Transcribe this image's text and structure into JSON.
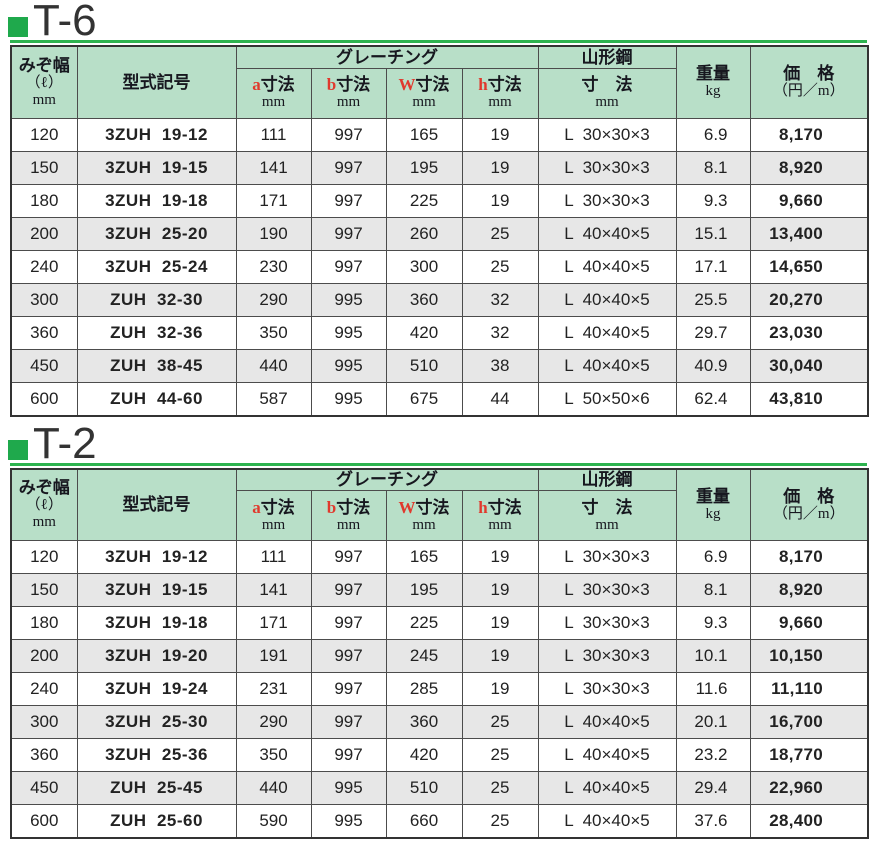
{
  "colors": {
    "accent_green": "#1fa94c",
    "bar_green": "#2db34f",
    "header_bg": "#b8dfc8",
    "alt_row_bg": "#e7e7e7",
    "dim_letter_red": "#e0392d"
  },
  "header": {
    "groove": {
      "line1": "みぞ幅",
      "line2": "（ℓ）",
      "line3": "mm"
    },
    "model": "型式記号",
    "grating": "グレーチング",
    "dims": [
      {
        "letter": "a",
        "label": "寸法",
        "unit": "mm"
      },
      {
        "letter": "b",
        "label": "寸法",
        "unit": "mm"
      },
      {
        "letter": "W",
        "label": "寸法",
        "unit": "mm"
      },
      {
        "letter": "h",
        "label": "寸法",
        "unit": "mm"
      }
    ],
    "angle": {
      "title": "山形鋼",
      "sub": "寸　法",
      "unit": "mm"
    },
    "weight": {
      "line1": "重量",
      "line2": "kg"
    },
    "price": {
      "line1": "価　格",
      "line2": "（円／m）"
    }
  },
  "sections": [
    {
      "id": "t6",
      "title": "T-6",
      "rows": [
        [
          "120",
          "3ZUH  19-12",
          "111",
          "997",
          "165",
          "19",
          "L  30×30×3",
          "6.9",
          "8,170"
        ],
        [
          "150",
          "3ZUH  19-15",
          "141",
          "997",
          "195",
          "19",
          "L  30×30×3",
          "8.1",
          "8,920"
        ],
        [
          "180",
          "3ZUH  19-18",
          "171",
          "997",
          "225",
          "19",
          "L  30×30×3",
          "9.3",
          "9,660"
        ],
        [
          "200",
          "3ZUH  25-20",
          "190",
          "997",
          "260",
          "25",
          "L  40×40×5",
          "15.1",
          "13,400"
        ],
        [
          "240",
          "3ZUH  25-24",
          "230",
          "997",
          "300",
          "25",
          "L  40×40×5",
          "17.1",
          "14,650"
        ],
        [
          "300",
          "ZUH  32-30",
          "290",
          "995",
          "360",
          "32",
          "L  40×40×5",
          "25.5",
          "20,270"
        ],
        [
          "360",
          "ZUH  32-36",
          "350",
          "995",
          "420",
          "32",
          "L  40×40×5",
          "29.7",
          "23,030"
        ],
        [
          "450",
          "ZUH  38-45",
          "440",
          "995",
          "510",
          "38",
          "L  40×40×5",
          "40.9",
          "30,040"
        ],
        [
          "600",
          "ZUH  44-60",
          "587",
          "995",
          "675",
          "44",
          "L  50×50×6",
          "62.4",
          "43,810"
        ]
      ]
    },
    {
      "id": "t2",
      "title": "T-2",
      "rows": [
        [
          "120",
          "3ZUH  19-12",
          "111",
          "997",
          "165",
          "19",
          "L  30×30×3",
          "6.9",
          "8,170"
        ],
        [
          "150",
          "3ZUH  19-15",
          "141",
          "997",
          "195",
          "19",
          "L  30×30×3",
          "8.1",
          "8,920"
        ],
        [
          "180",
          "3ZUH  19-18",
          "171",
          "997",
          "225",
          "19",
          "L  30×30×3",
          "9.3",
          "9,660"
        ],
        [
          "200",
          "3ZUH  19-20",
          "191",
          "997",
          "245",
          "19",
          "L  30×30×3",
          "10.1",
          "10,150"
        ],
        [
          "240",
          "3ZUH  19-24",
          "231",
          "997",
          "285",
          "19",
          "L  30×30×3",
          "11.6",
          "11,110"
        ],
        [
          "300",
          "3ZUH  25-30",
          "290",
          "997",
          "360",
          "25",
          "L  40×40×5",
          "20.1",
          "16,700"
        ],
        [
          "360",
          "3ZUH  25-36",
          "350",
          "997",
          "420",
          "25",
          "L  40×40×5",
          "23.2",
          "18,770"
        ],
        [
          "450",
          "ZUH  25-45",
          "440",
          "995",
          "510",
          "25",
          "L  40×40×5",
          "29.4",
          "22,960"
        ],
        [
          "600",
          "ZUH  25-60",
          "590",
          "995",
          "660",
          "25",
          "L  40×40×5",
          "37.6",
          "28,400"
        ]
      ]
    }
  ]
}
